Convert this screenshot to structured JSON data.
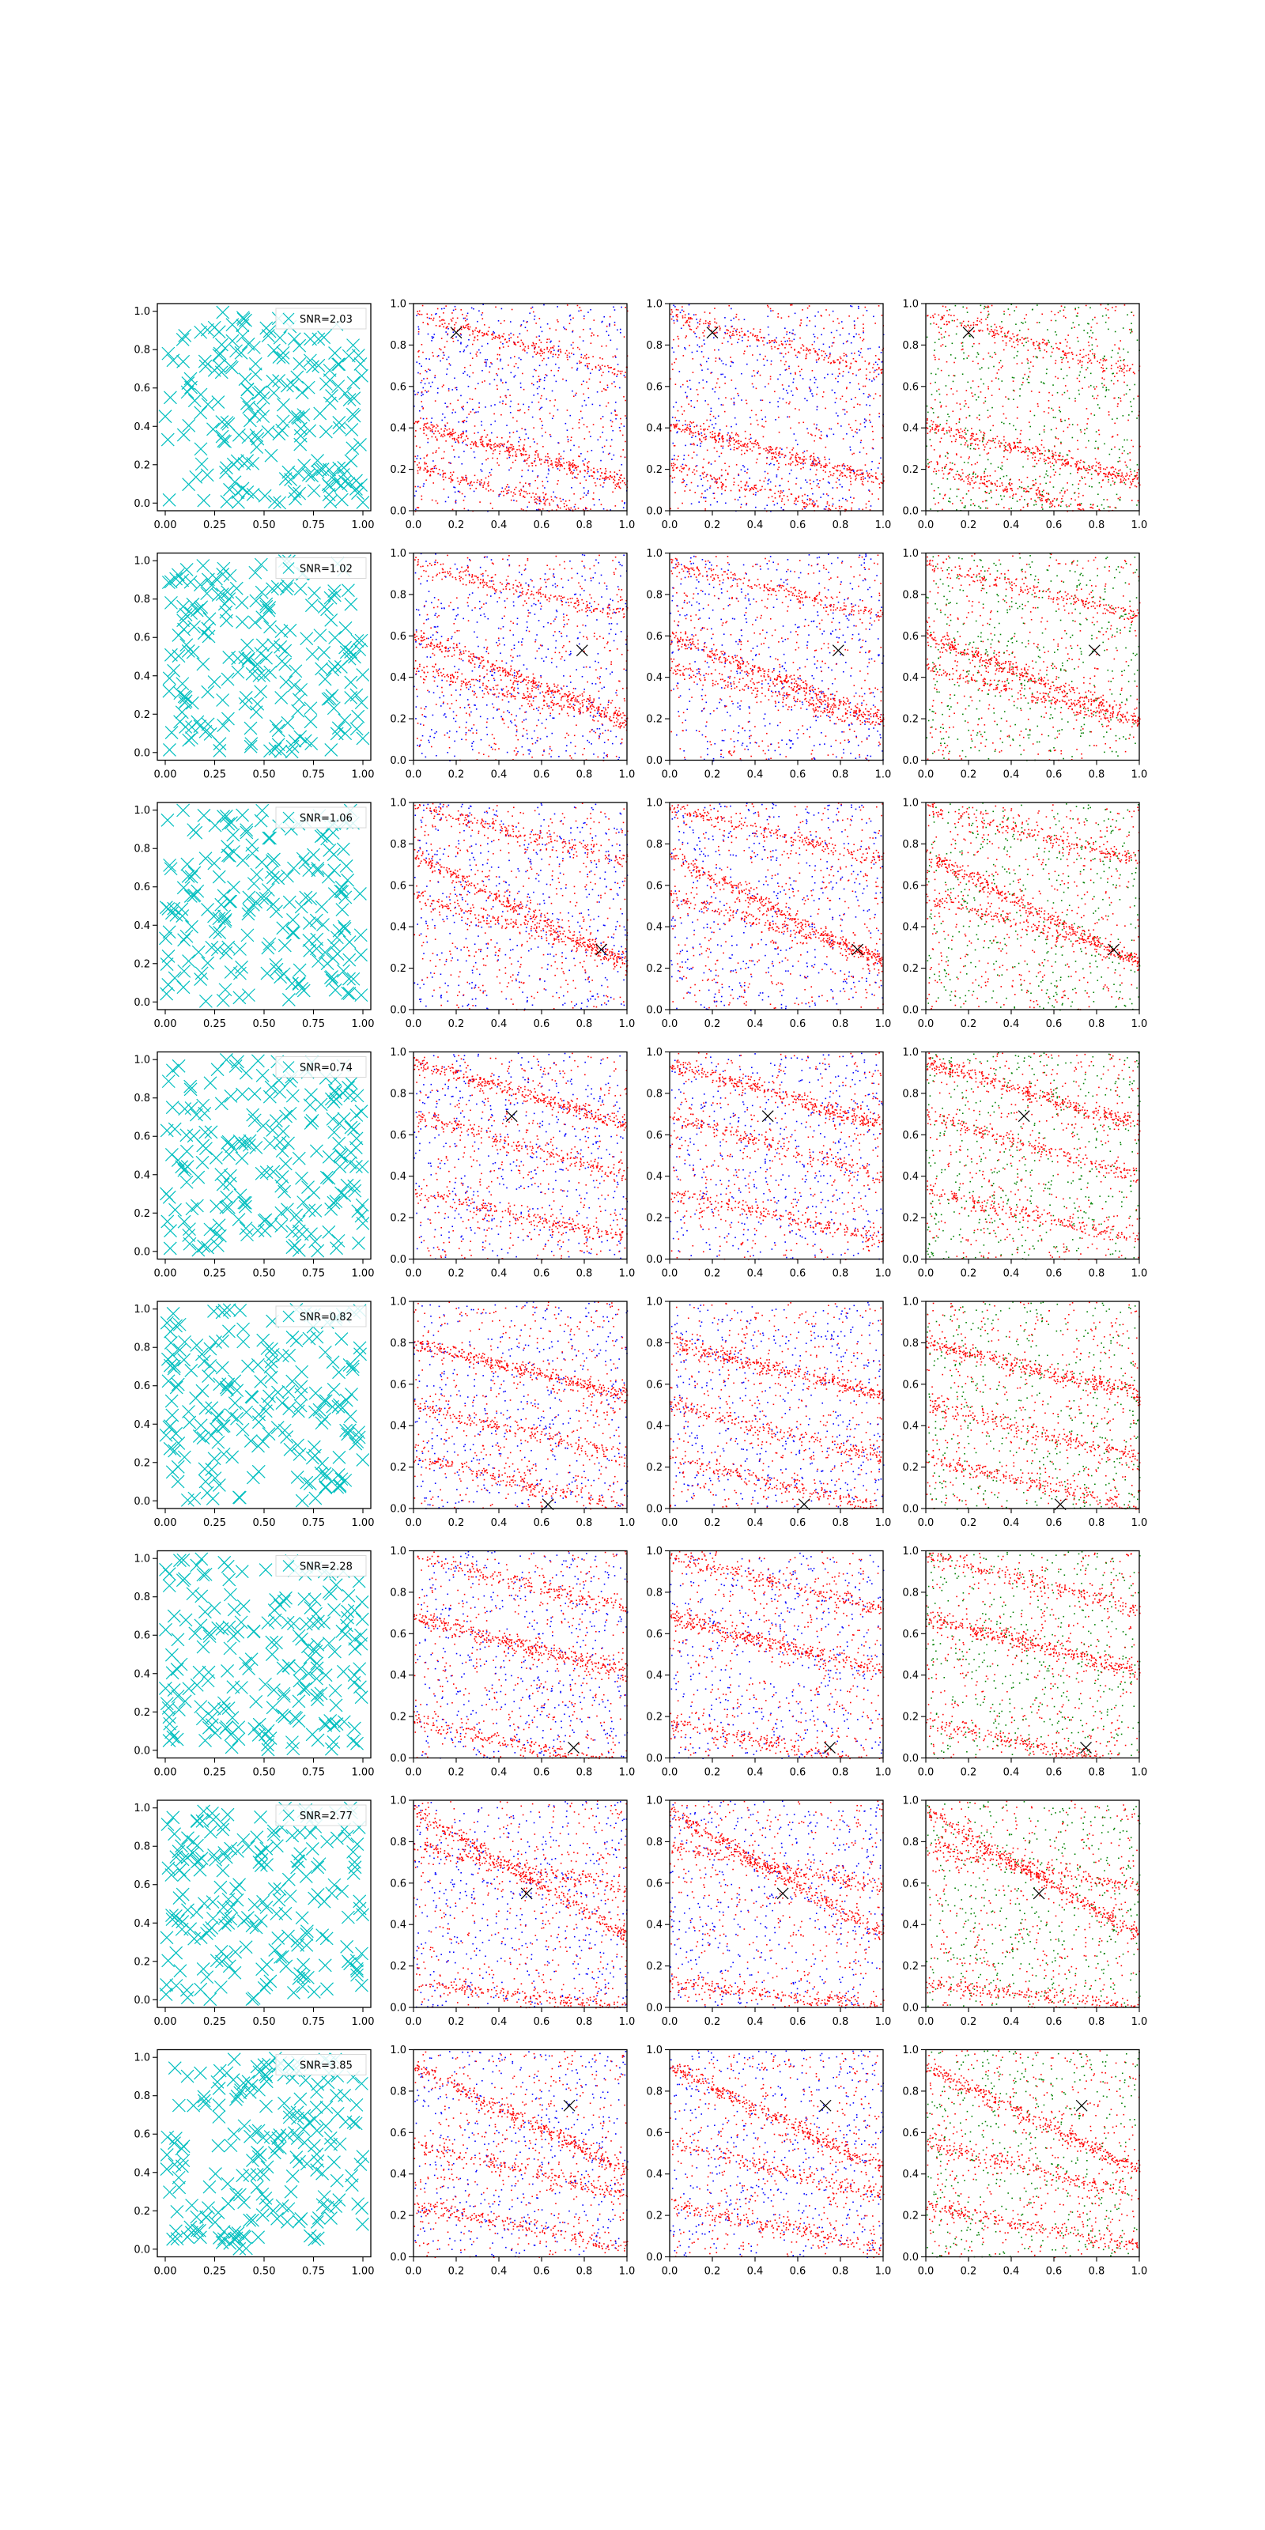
{
  "figure": {
    "colors": {
      "scatter_marker": "#00bfbf",
      "series_red": "#ff0000",
      "series_blue": "#0000ff",
      "series_green": "#008000",
      "marker_x": "#000000",
      "axis": "#000000"
    },
    "col0_ticks": [
      "0.00",
      "0.25",
      "0.50",
      "0.75",
      "1.00"
    ],
    "col_other_ticks": [
      "0.0",
      "0.2",
      "0.4",
      "0.6",
      "0.8",
      "1.0"
    ],
    "y_ticks": [
      "0.0",
      "0.2",
      "0.4",
      "0.6",
      "0.8",
      "1.0"
    ]
  },
  "chart_data": {
    "type": "scatter",
    "grid": false,
    "xlim": [
      0,
      1
    ],
    "ylim": [
      0,
      1
    ],
    "col0_xlim": [
      -0.04,
      1.04
    ],
    "col0_ylim": [
      -0.04,
      1.04
    ],
    "legend_position": "top-right",
    "column_series": [
      [
        "series_cyan_x"
      ],
      [
        "red",
        "blue"
      ],
      [
        "red",
        "blue"
      ],
      [
        "red",
        "green"
      ]
    ],
    "rows": [
      {
        "snr": "SNR=2.03",
        "marker": [
          0.2,
          0.86
        ],
        "bands": [
          {
            "x": [
              0,
              1
            ],
            "y": [
              0.42,
              0.14
            ]
          },
          {
            "x": [
              0,
              1
            ],
            "y": [
              0.95,
              0.67
            ]
          },
          {
            "x": [
              0,
              1
            ],
            "y": [
              0.22,
              -0.06
            ]
          }
        ]
      },
      {
        "snr": "SNR=1.02",
        "marker": [
          0.79,
          0.53
        ],
        "bands": [
          {
            "x": [
              0,
              1
            ],
            "y": [
              0.6,
              0.2
            ]
          },
          {
            "x": [
              0,
              1
            ],
            "y": [
              0.95,
              0.7
            ]
          },
          {
            "x": [
              0,
              1
            ],
            "y": [
              0.45,
              0.18
            ]
          }
        ]
      },
      {
        "snr": "SNR=1.06",
        "marker": [
          0.88,
          0.29
        ],
        "bands": [
          {
            "x": [
              0,
              1
            ],
            "y": [
              0.75,
              0.22
            ]
          },
          {
            "x": [
              0,
              1
            ],
            "y": [
              0.98,
              0.72
            ]
          },
          {
            "x": [
              0,
              1
            ],
            "y": [
              0.55,
              0.25
            ]
          }
        ]
      },
      {
        "snr": "SNR=0.74",
        "marker": [
          0.46,
          0.69
        ],
        "bands": [
          {
            "x": [
              0,
              1
            ],
            "y": [
              0.95,
              0.65
            ]
          },
          {
            "x": [
              0,
              1
            ],
            "y": [
              0.33,
              0.1
            ]
          },
          {
            "x": [
              0,
              1
            ],
            "y": [
              0.7,
              0.4
            ]
          }
        ]
      },
      {
        "snr": "SNR=0.82",
        "marker": [
          0.63,
          0.02
        ],
        "bands": [
          {
            "x": [
              0,
              1
            ],
            "y": [
              0.8,
              0.55
            ]
          },
          {
            "x": [
              0,
              1
            ],
            "y": [
              0.5,
              0.25
            ]
          },
          {
            "x": [
              0,
              1
            ],
            "y": [
              0.25,
              0.0
            ]
          }
        ]
      },
      {
        "snr": "SNR=2.28",
        "marker": [
          0.75,
          0.05
        ],
        "bands": [
          {
            "x": [
              0,
              1
            ],
            "y": [
              0.68,
              0.42
            ]
          },
          {
            "x": [
              0,
              1
            ],
            "y": [
              0.18,
              -0.05
            ]
          },
          {
            "x": [
              0,
              1
            ],
            "y": [
              0.98,
              0.72
            ]
          }
        ]
      },
      {
        "snr": "SNR=2.77",
        "marker": [
          0.53,
          0.55
        ],
        "bands": [
          {
            "x": [
              0,
              1
            ],
            "y": [
              0.95,
              0.35
            ]
          },
          {
            "x": [
              0,
              1
            ],
            "y": [
              0.78,
              0.58
            ]
          },
          {
            "x": [
              0,
              1
            ],
            "y": [
              0.12,
              0.0
            ]
          }
        ]
      },
      {
        "snr": "SNR=3.85",
        "marker": [
          0.73,
          0.73
        ],
        "bands": [
          {
            "x": [
              0,
              1
            ],
            "y": [
              0.92,
              0.42
            ]
          },
          {
            "x": [
              0,
              1
            ],
            "y": [
              0.55,
              0.3
            ]
          },
          {
            "x": [
              0,
              1
            ],
            "y": [
              0.25,
              0.05
            ]
          }
        ]
      }
    ]
  }
}
